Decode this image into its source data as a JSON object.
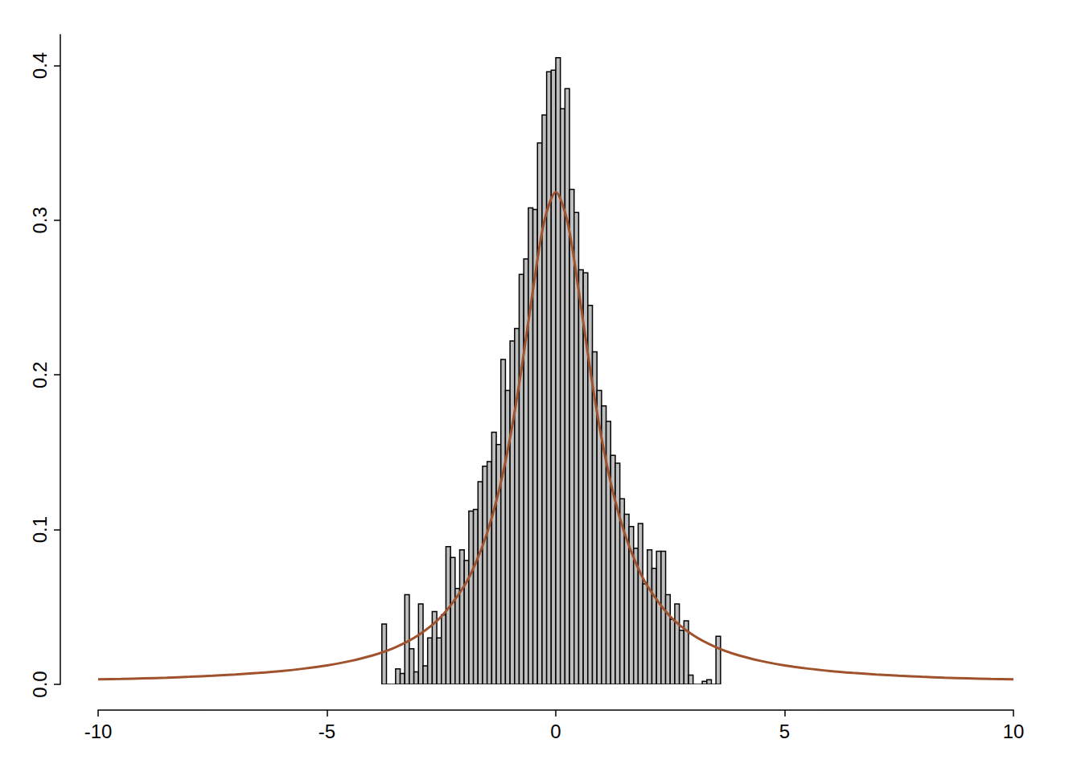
{
  "chart_data": {
    "type": "histogram",
    "color": "#bebebe",
    "bins": [
      -3.8,
      -3.7,
      -3.6,
      -3.5,
      -3.4,
      -3.3,
      -3.2,
      -3.1,
      -3.0,
      -2.9,
      -2.8,
      -2.7,
      -2.6,
      -2.5,
      -2.4,
      -2.3,
      -2.2,
      -2.1,
      -2.0,
      -1.9,
      -1.8,
      -1.7,
      -1.6,
      -1.5,
      -1.4,
      -1.3,
      -1.2,
      -1.1,
      -1.0,
      -0.9,
      -0.8,
      -0.7,
      -0.6,
      -0.5,
      -0.4,
      -0.3,
      -0.2,
      -0.1,
      0.0,
      0.1,
      0.2,
      0.3,
      0.4,
      0.5,
      0.6,
      0.7,
      0.8,
      0.9,
      1.0,
      1.1,
      1.2,
      1.3,
      1.4,
      1.5,
      1.6,
      1.7,
      1.8,
      1.9,
      2.0,
      2.1,
      2.2,
      2.3,
      2.4,
      2.5,
      2.6,
      2.7,
      2.8,
      2.9,
      3.0,
      3.1,
      3.2,
      3.3,
      3.4,
      3.5,
      3.6
    ],
    "values": [
      0.039,
      0,
      0,
      0.01,
      0.007,
      0.058,
      0.023,
      0.008,
      0.052,
      0.012,
      0.03,
      0.047,
      0.03,
      0.045,
      0.089,
      0.082,
      0.062,
      0.087,
      0.08,
      0.112,
      0.113,
      0.131,
      0.141,
      0.144,
      0.163,
      0.155,
      0.21,
      0.19,
      0.222,
      0.23,
      0.265,
      0.275,
      0.308,
      0.307,
      0.35,
      0.368,
      0.396,
      0.397,
      0.405,
      0.372,
      0.385,
      0.32,
      0.305,
      0.268,
      0.266,
      0.245,
      0.215,
      0.19,
      0.18,
      0.17,
      0.148,
      0.143,
      0.12,
      0.11,
      0.102,
      0.088,
      0.104,
      0.065,
      0.087,
      0.075,
      0.086,
      0.086,
      0.058,
      0.042,
      0.052,
      0.035,
      0.041,
      0.006,
      0,
      0,
      0.002,
      0.003,
      0,
      0.031
    ],
    "curve": {
      "type": "line",
      "color": "#a0522d",
      "x": [
        -10,
        -9.5,
        -9,
        -8.5,
        -8,
        -7.5,
        -7,
        -6.5,
        -6,
        -5.5,
        -5,
        -4.5,
        -4,
        -3.5,
        -3,
        -2.5,
        -2,
        -1.75,
        -1.5,
        -1.25,
        -1,
        -0.75,
        -0.5,
        -0.25,
        0,
        0.25,
        0.5,
        0.75,
        1,
        1.25,
        1.5,
        1.75,
        2,
        2.5,
        3,
        3.5,
        4,
        4.5,
        5,
        5.5,
        6,
        6.5,
        7,
        7.5,
        8,
        8.5,
        9,
        9.5,
        10
      ],
      "values": [
        0.0032,
        0.0035,
        0.0039,
        0.0043,
        0.0049,
        0.0056,
        0.0064,
        0.0074,
        0.0086,
        0.0102,
        0.0122,
        0.015,
        0.0187,
        0.024,
        0.0318,
        0.0439,
        0.0637,
        0.0784,
        0.0979,
        0.1242,
        0.1592,
        0.2037,
        0.2546,
        0.2996,
        0.3183,
        0.2996,
        0.2546,
        0.2037,
        0.1592,
        0.1242,
        0.0979,
        0.0784,
        0.0637,
        0.0439,
        0.0318,
        0.024,
        0.0187,
        0.015,
        0.0122,
        0.0102,
        0.0086,
        0.0074,
        0.0064,
        0.0056,
        0.0049,
        0.0043,
        0.0039,
        0.0035,
        0.0032
      ]
    },
    "xlim": [
      -10,
      10
    ],
    "xticks": [
      -10,
      -5,
      0,
      5,
      10
    ],
    "ylim": [
      0,
      0.42
    ],
    "yticks": [
      {
        "value": 0,
        "label": "0.0"
      },
      0.1,
      0.2,
      0.3,
      0.4
    ],
    "grid": false
  }
}
